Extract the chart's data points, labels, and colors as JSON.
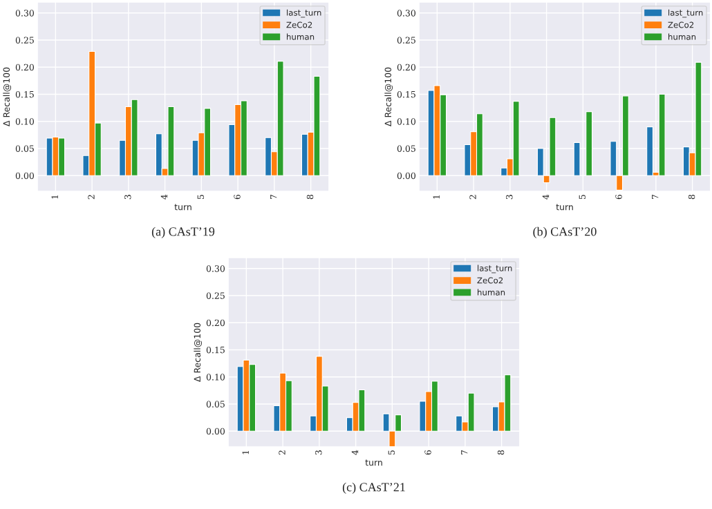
{
  "chart_data": [
    {
      "type": "bar",
      "title": "(a) CAsT’19",
      "xlabel": "turn",
      "ylabel": "Δ Recall@100",
      "categories": [
        "1",
        "2",
        "3",
        "4",
        "5",
        "6",
        "7",
        "8"
      ],
      "series": [
        {
          "name": "last_turn",
          "color": "#1f77b4",
          "values": [
            0.069,
            0.037,
            0.065,
            0.077,
            0.065,
            0.094,
            0.07,
            0.076
          ]
        },
        {
          "name": "ZeCo2",
          "color": "#ff7f0e",
          "values": [
            0.071,
            0.229,
            0.127,
            0.013,
            0.079,
            0.131,
            0.044,
            0.08
          ]
        },
        {
          "name": "human",
          "color": "#2ca02c",
          "values": [
            0.069,
            0.097,
            0.14,
            0.127,
            0.124,
            0.138,
            0.211,
            0.183
          ]
        }
      ],
      "ylim": [
        -0.029,
        0.32
      ],
      "yticks": [
        {
          "value": 0,
          "label": "0.00"
        },
        {
          "value": 0.05,
          "label": "0.05"
        },
        {
          "value": 0.1,
          "label": "0.10"
        },
        {
          "value": 0.15,
          "label": "0.15"
        },
        {
          "value": 0.2,
          "label": "0.20"
        },
        {
          "value": 0.25,
          "label": "0.25"
        },
        {
          "value": 0.3,
          "label": "0.30"
        }
      ],
      "grid": true,
      "legend": "top right"
    },
    {
      "type": "bar",
      "title": "(b) CAsT’20",
      "xlabel": "turn",
      "ylabel": "Δ Recall@100",
      "categories": [
        "1",
        "2",
        "3",
        "4",
        "5",
        "6",
        "7",
        "8"
      ],
      "series": [
        {
          "name": "last_turn",
          "color": "#1f77b4",
          "values": [
            0.157,
            0.057,
            0.014,
            0.05,
            0.061,
            0.063,
            0.09,
            0.053
          ]
        },
        {
          "name": "ZeCo2",
          "color": "#ff7f0e",
          "values": [
            0.166,
            0.081,
            0.031,
            -0.013,
            null,
            -0.027,
            0.006,
            0.042
          ]
        },
        {
          "name": "human",
          "color": "#2ca02c",
          "values": [
            0.149,
            0.114,
            0.137,
            0.107,
            0.118,
            0.147,
            0.15,
            0.209
          ]
        }
      ],
      "ylim": [
        -0.029,
        0.32
      ],
      "yticks": [
        {
          "value": 0,
          "label": "0.00"
        },
        {
          "value": 0.05,
          "label": "0.05"
        },
        {
          "value": 0.1,
          "label": "0.10"
        },
        {
          "value": 0.15,
          "label": "0.15"
        },
        {
          "value": 0.2,
          "label": "0.20"
        },
        {
          "value": 0.25,
          "label": "0.25"
        },
        {
          "value": 0.3,
          "label": "0.30"
        }
      ],
      "grid": true,
      "legend": "top right"
    },
    {
      "type": "bar",
      "title": "(c) CAsT’21",
      "xlabel": "turn",
      "ylabel": "Δ Recall@100",
      "categories": [
        "1",
        "2",
        "3",
        "4",
        "5",
        "6",
        "7",
        "8"
      ],
      "series": [
        {
          "name": "last_turn",
          "color": "#1f77b4",
          "values": [
            0.119,
            0.047,
            0.028,
            0.025,
            0.032,
            0.055,
            0.028,
            0.045
          ]
        },
        {
          "name": "ZeCo2",
          "color": "#ff7f0e",
          "values": [
            0.131,
            0.107,
            0.138,
            0.053,
            -0.029,
            0.073,
            0.017,
            0.054
          ]
        },
        {
          "name": "human",
          "color": "#2ca02c",
          "values": [
            0.123,
            0.093,
            0.083,
            0.076,
            0.03,
            0.092,
            0.07,
            0.104
          ]
        }
      ],
      "ylim": [
        -0.029,
        0.32
      ],
      "yticks": [
        {
          "value": 0,
          "label": "0.00"
        },
        {
          "value": 0.05,
          "label": "0.05"
        },
        {
          "value": 0.1,
          "label": "0.10"
        },
        {
          "value": 0.15,
          "label": "0.15"
        },
        {
          "value": 0.2,
          "label": "0.20"
        },
        {
          "value": 0.25,
          "label": "0.25"
        },
        {
          "value": 0.3,
          "label": "0.30"
        }
      ],
      "grid": true,
      "legend": "top right"
    }
  ]
}
